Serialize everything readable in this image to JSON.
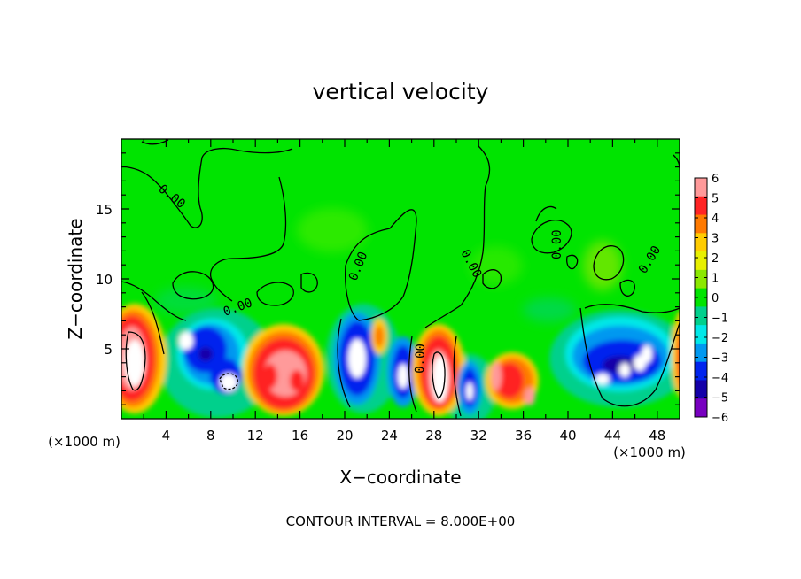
{
  "chart_data": {
    "type": "heatmap",
    "title": "vertical velocity",
    "xlabel": "X−coordinate",
    "ylabel": "Z−coordinate",
    "x_unit_label": "(×1000 m)",
    "y_unit_label": "(×1000 m)",
    "xlim": [
      0,
      50
    ],
    "ylim": [
      0,
      20
    ],
    "x_ticks": [
      "4",
      "8",
      "12",
      "16",
      "20",
      "24",
      "28",
      "32",
      "36",
      "40",
      "44",
      "48"
    ],
    "y_ticks": [
      "5",
      "10",
      "15"
    ],
    "x_tick_values": [
      4,
      8,
      12,
      16,
      20,
      24,
      28,
      32,
      36,
      40,
      44,
      48
    ],
    "y_tick_values": [
      5,
      10,
      15
    ],
    "colorbar": {
      "range": [
        -6,
        6
      ],
      "labels": [
        "6",
        "5",
        "4",
        "3",
        "2",
        "1",
        "0",
        "−1",
        "−2",
        "−3",
        "−4",
        "−5",
        "−6"
      ],
      "label_values": [
        6,
        5,
        4,
        3,
        2,
        1,
        0,
        -1,
        -2,
        -3,
        -4,
        -5,
        -6
      ],
      "colors": [
        "#ff9a9a",
        "#ff2424",
        "#ff7a00",
        "#ffcc00",
        "#e8f000",
        "#8be800",
        "#00e400",
        "#00d08c",
        "#00e8e8",
        "#0098f0",
        "#0024ee",
        "#1400a8",
        "#7800c0"
      ]
    },
    "contour_label": "0.00",
    "footer": "CONTOUR INTERVAL = 8.000E+00"
  }
}
